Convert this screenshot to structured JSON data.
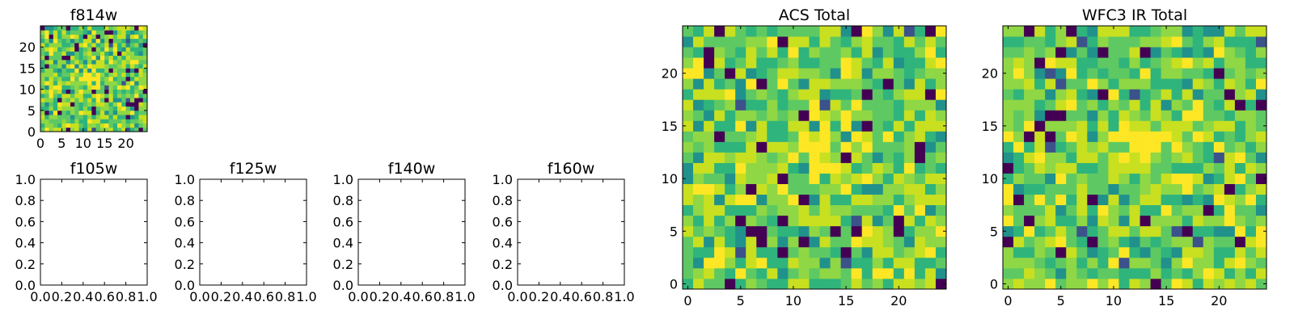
{
  "chart_data": [
    {
      "type": "heatmap",
      "title": "f814w",
      "xlim": [
        0,
        25
      ],
      "ylim": [
        0,
        25
      ],
      "xticks": [
        "0",
        "5",
        "10",
        "15",
        "20"
      ],
      "yticks": [
        "0",
        "5",
        "10",
        "15",
        "20"
      ],
      "grid": 25,
      "colormap": "viridis",
      "bright_source_center": [
        12,
        12
      ],
      "note": "pixel noise image, bright source near center"
    },
    {
      "type": "heatmap",
      "title": "f105w",
      "xlim": [
        0,
        1
      ],
      "ylim": [
        0,
        1
      ],
      "xticks": [
        "0.0",
        "0.2",
        "0.4",
        "0.6",
        "0.8",
        "1.0"
      ],
      "yticks": [
        "0.0",
        "0.2",
        "0.4",
        "0.6",
        "0.8",
        "1.0"
      ],
      "empty": true
    },
    {
      "type": "heatmap",
      "title": "f125w",
      "xlim": [
        0,
        1
      ],
      "ylim": [
        0,
        1
      ],
      "xticks": [
        "0.0",
        "0.2",
        "0.4",
        "0.6",
        "0.8",
        "1.0"
      ],
      "yticks": [
        "0.0",
        "0.2",
        "0.4",
        "0.6",
        "0.8",
        "1.0"
      ],
      "empty": true
    },
    {
      "type": "heatmap",
      "title": "f140w",
      "xlim": [
        0,
        1
      ],
      "ylim": [
        0,
        1
      ],
      "xticks": [
        "0.0",
        "0.2",
        "0.4",
        "0.6",
        "0.8",
        "1.0"
      ],
      "yticks": [
        "0.0",
        "0.2",
        "0.4",
        "0.6",
        "0.8",
        "1.0"
      ],
      "empty": true
    },
    {
      "type": "heatmap",
      "title": "f160w",
      "xlim": [
        0,
        1
      ],
      "ylim": [
        0,
        1
      ],
      "xticks": [
        "0.0",
        "0.2",
        "0.4",
        "0.6",
        "0.8",
        "1.0"
      ],
      "yticks": [
        "0.0",
        "0.2",
        "0.4",
        "0.6",
        "0.8",
        "1.0"
      ],
      "empty": true
    },
    {
      "type": "heatmap",
      "title": "ACS Total",
      "xlim": [
        -0.5,
        24.5
      ],
      "ylim": [
        -0.5,
        24.5
      ],
      "xticks": [
        "0",
        "5",
        "10",
        "15",
        "20"
      ],
      "yticks": [
        "0",
        "5",
        "10",
        "15",
        "20"
      ],
      "grid": 25,
      "colormap": "viridis",
      "bright_source_center": [
        12,
        12
      ],
      "note": "pixel noise image, bright source near center"
    },
    {
      "type": "heatmap",
      "title": "WFC3 IR Total",
      "xlim": [
        -0.5,
        24.5
      ],
      "ylim": [
        -0.5,
        24.5
      ],
      "xticks": [
        "0",
        "5",
        "10",
        "15",
        "20"
      ],
      "yticks": [
        "0",
        "5",
        "10",
        "15",
        "20"
      ],
      "grid": 25,
      "colormap": "viridis",
      "bright_source_center": [
        12,
        13
      ],
      "note": "pixel noise image, bright source near center"
    }
  ],
  "colors": {
    "viridis": [
      "#440154",
      "#3b528b",
      "#21918c",
      "#2fb47c",
      "#5ec962",
      "#8fd744",
      "#c8e020",
      "#fde725"
    ]
  }
}
